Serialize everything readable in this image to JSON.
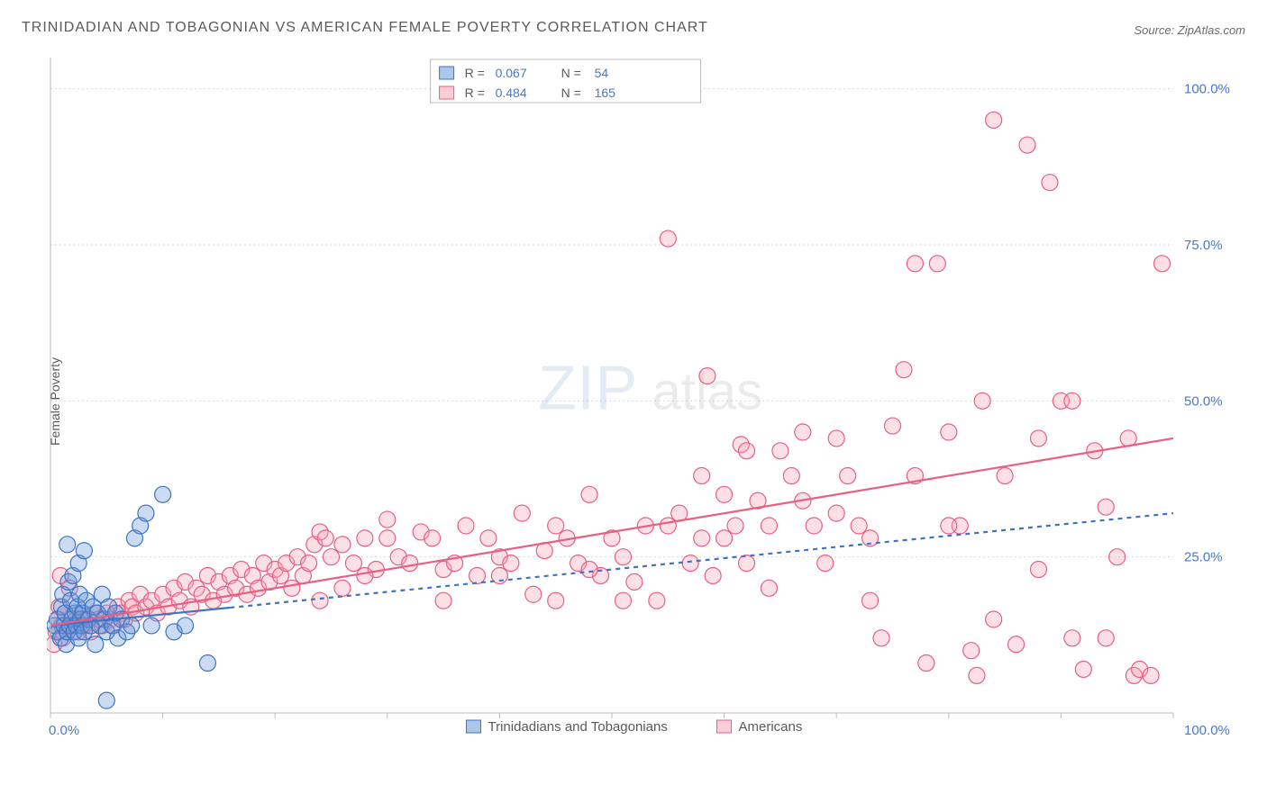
{
  "title": "TRINIDADIAN AND TOBAGONIAN VS AMERICAN FEMALE POVERTY CORRELATION CHART",
  "source": "Source: ZipAtlas.com",
  "ylabel": "Female Poverty",
  "watermark": {
    "zip": "ZIP",
    "atlas": "atlas"
  },
  "chart": {
    "type": "scatter-correlation",
    "xlim": [
      0,
      100
    ],
    "ylim": [
      0,
      105
    ],
    "xticks": [
      0,
      10,
      20,
      30,
      40,
      50,
      60,
      70,
      80,
      90,
      100
    ],
    "yticks": [
      25,
      50,
      75,
      100
    ],
    "xlabel_0": "0.0%",
    "xlabel_100": "100.0%",
    "ytick_labels": [
      "25.0%",
      "50.0%",
      "75.0%",
      "100.0%"
    ],
    "background": "#ffffff",
    "grid_color": "#d8d8d8",
    "axis_color": "#bcbcbc",
    "marker_radius": 9,
    "series": [
      {
        "id": "blue",
        "label": "Trinidadians and Tobagonians",
        "color_fill": "#6699dd",
        "color_stroke": "#3f74c4",
        "R": "0.067",
        "N": "54",
        "trend": {
          "x1": 0,
          "y1": 14,
          "x2": 100,
          "y2": 32,
          "dash": "5 5",
          "solid_until_x": 16
        },
        "points": [
          [
            0.4,
            14
          ],
          [
            0.6,
            15
          ],
          [
            0.7,
            13
          ],
          [
            0.9,
            12
          ],
          [
            1.0,
            17
          ],
          [
            1.1,
            19
          ],
          [
            1.2,
            14
          ],
          [
            1.3,
            16
          ],
          [
            1.4,
            11
          ],
          [
            1.5,
            13
          ],
          [
            1.6,
            21
          ],
          [
            1.7,
            14
          ],
          [
            1.8,
            18
          ],
          [
            1.9,
            15
          ],
          [
            2.0,
            22
          ],
          [
            2.1,
            13
          ],
          [
            2.2,
            16
          ],
          [
            2.3,
            14
          ],
          [
            2.4,
            17
          ],
          [
            2.5,
            12
          ],
          [
            2.6,
            19
          ],
          [
            2.7,
            15
          ],
          [
            2.8,
            14
          ],
          [
            2.9,
            16
          ],
          [
            3.0,
            13
          ],
          [
            3.2,
            18
          ],
          [
            3.4,
            15
          ],
          [
            3.6,
            14
          ],
          [
            3.8,
            17
          ],
          [
            4.0,
            11
          ],
          [
            4.2,
            16
          ],
          [
            4.4,
            14
          ],
          [
            4.6,
            19
          ],
          [
            4.8,
            15
          ],
          [
            5.0,
            13
          ],
          [
            5.2,
            17
          ],
          [
            5.5,
            14
          ],
          [
            5.8,
            16
          ],
          [
            6.0,
            12
          ],
          [
            6.3,
            15
          ],
          [
            6.8,
            13
          ],
          [
            7.2,
            14
          ],
          [
            7.5,
            28
          ],
          [
            8.0,
            30
          ],
          [
            8.5,
            32
          ],
          [
            9.0,
            14
          ],
          [
            10.0,
            35
          ],
          [
            11.0,
            13
          ],
          [
            12.0,
            14
          ],
          [
            14.0,
            8
          ],
          [
            5.0,
            2
          ],
          [
            2.5,
            24
          ],
          [
            3.0,
            26
          ],
          [
            1.5,
            27
          ]
        ]
      },
      {
        "id": "pink",
        "label": "Americans",
        "color_fill": "#f6a6b8",
        "color_stroke": "#e85f82",
        "R": "0.484",
        "N": "165",
        "trend": {
          "x1": 0,
          "y1": 14,
          "x2": 100,
          "y2": 44,
          "dash": "",
          "solid_until_x": 100
        },
        "points": [
          [
            0.3,
            11
          ],
          [
            0.5,
            13
          ],
          [
            0.7,
            15
          ],
          [
            0.8,
            17
          ],
          [
            0.9,
            22
          ],
          [
            1.0,
            14
          ],
          [
            1.1,
            12
          ],
          [
            1.3,
            16
          ],
          [
            1.5,
            13
          ],
          [
            1.7,
            20
          ],
          [
            2.0,
            14
          ],
          [
            2.3,
            15
          ],
          [
            2.5,
            13
          ],
          [
            2.8,
            16
          ],
          [
            3.0,
            14
          ],
          [
            3.3,
            15
          ],
          [
            3.6,
            13
          ],
          [
            4.0,
            16
          ],
          [
            4.3,
            15
          ],
          [
            4.6,
            14
          ],
          [
            5.0,
            16
          ],
          [
            5.3,
            15
          ],
          [
            5.6,
            14
          ],
          [
            6.0,
            17
          ],
          [
            6.3,
            16
          ],
          [
            6.6,
            15
          ],
          [
            7.0,
            18
          ],
          [
            7.3,
            17
          ],
          [
            7.6,
            16
          ],
          [
            8.0,
            19
          ],
          [
            8.5,
            17
          ],
          [
            9.0,
            18
          ],
          [
            9.5,
            16
          ],
          [
            10.0,
            19
          ],
          [
            10.5,
            17
          ],
          [
            11.0,
            20
          ],
          [
            11.5,
            18
          ],
          [
            12.0,
            21
          ],
          [
            12.5,
            17
          ],
          [
            13.0,
            20
          ],
          [
            13.5,
            19
          ],
          [
            14.0,
            22
          ],
          [
            14.5,
            18
          ],
          [
            15.0,
            21
          ],
          [
            15.5,
            19
          ],
          [
            16.0,
            22
          ],
          [
            16.5,
            20
          ],
          [
            17.0,
            23
          ],
          [
            17.5,
            19
          ],
          [
            18.0,
            22
          ],
          [
            18.5,
            20
          ],
          [
            19.0,
            24
          ],
          [
            19.5,
            21
          ],
          [
            20.0,
            23
          ],
          [
            20.5,
            22
          ],
          [
            21.0,
            24
          ],
          [
            21.5,
            20
          ],
          [
            22.0,
            25
          ],
          [
            22.5,
            22
          ],
          [
            23.0,
            24
          ],
          [
            23.5,
            27
          ],
          [
            24.0,
            29
          ],
          [
            24.5,
            28
          ],
          [
            25.0,
            25
          ],
          [
            26.0,
            27
          ],
          [
            27.0,
            24
          ],
          [
            28.0,
            28
          ],
          [
            29.0,
            23
          ],
          [
            30.0,
            28
          ],
          [
            31.0,
            25
          ],
          [
            32.0,
            24
          ],
          [
            33.0,
            29
          ],
          [
            34.0,
            28
          ],
          [
            35.0,
            23
          ],
          [
            36.0,
            24
          ],
          [
            37.0,
            30
          ],
          [
            38.0,
            22
          ],
          [
            39.0,
            28
          ],
          [
            40.0,
            25
          ],
          [
            41.0,
            24
          ],
          [
            42.0,
            32
          ],
          [
            43.0,
            19
          ],
          [
            44.0,
            26
          ],
          [
            45.0,
            18
          ],
          [
            46.0,
            28
          ],
          [
            47.0,
            24
          ],
          [
            48.0,
            35
          ],
          [
            49.0,
            22
          ],
          [
            50.0,
            28
          ],
          [
            51.0,
            25
          ],
          [
            52.0,
            21
          ],
          [
            53.0,
            30
          ],
          [
            54.0,
            18
          ],
          [
            55.0,
            30
          ],
          [
            56.0,
            32
          ],
          [
            57.0,
            24
          ],
          [
            58.0,
            38
          ],
          [
            58.5,
            54
          ],
          [
            59.0,
            22
          ],
          [
            60.0,
            28
          ],
          [
            61.0,
            30
          ],
          [
            61.5,
            43
          ],
          [
            62.0,
            24
          ],
          [
            63.0,
            34
          ],
          [
            64.0,
            20
          ],
          [
            65.0,
            42
          ],
          [
            66.0,
            38
          ],
          [
            67.0,
            34
          ],
          [
            68.0,
            30
          ],
          [
            69.0,
            24
          ],
          [
            70.0,
            44
          ],
          [
            71.0,
            38
          ],
          [
            72.0,
            30
          ],
          [
            73.0,
            18
          ],
          [
            74.0,
            12
          ],
          [
            75.0,
            46
          ],
          [
            76.0,
            55
          ],
          [
            77.0,
            38
          ],
          [
            78.0,
            8
          ],
          [
            79.0,
            72
          ],
          [
            80.0,
            45
          ],
          [
            81.0,
            30
          ],
          [
            82.0,
            10
          ],
          [
            82.5,
            6
          ],
          [
            83.0,
            50
          ],
          [
            84.0,
            95
          ],
          [
            85.0,
            38
          ],
          [
            86.0,
            11
          ],
          [
            87.0,
            91
          ],
          [
            88.0,
            44
          ],
          [
            89.0,
            85
          ],
          [
            90.0,
            50
          ],
          [
            91.0,
            12
          ],
          [
            92.0,
            7
          ],
          [
            93.0,
            42
          ],
          [
            94.0,
            33
          ],
          [
            95.0,
            25
          ],
          [
            96.0,
            44
          ],
          [
            96.5,
            6
          ],
          [
            97.0,
            7
          ],
          [
            98.0,
            6
          ],
          [
            99.0,
            72
          ],
          [
            55.0,
            76
          ],
          [
            60.0,
            35
          ],
          [
            62.0,
            42
          ],
          [
            51.0,
            18
          ],
          [
            48.0,
            23
          ],
          [
            45.0,
            30
          ],
          [
            40.0,
            22
          ],
          [
            35.0,
            18
          ],
          [
            30.0,
            31
          ],
          [
            28.0,
            22
          ],
          [
            26.0,
            20
          ],
          [
            24.0,
            18
          ],
          [
            58.0,
            28
          ],
          [
            64.0,
            30
          ],
          [
            67.0,
            45
          ],
          [
            70.0,
            32
          ],
          [
            73.0,
            28
          ],
          [
            77.0,
            72
          ],
          [
            80.0,
            30
          ],
          [
            84.0,
            15
          ],
          [
            88.0,
            23
          ],
          [
            91.0,
            50
          ],
          [
            94.0,
            12
          ]
        ]
      }
    ]
  },
  "legend_top_box": {
    "border": "#bcbcbc",
    "bg": "#ffffff"
  }
}
